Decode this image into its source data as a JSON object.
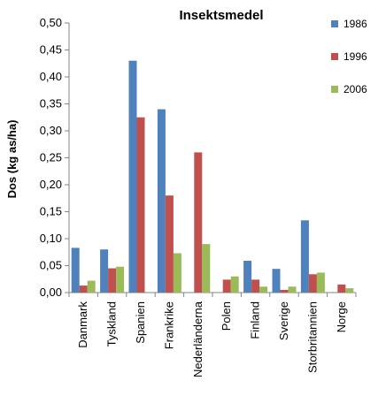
{
  "chart_data": {
    "type": "bar",
    "title": "Insektsmedel",
    "ylabel": "Dos (kg as/ha)",
    "xlabel": "",
    "ylim": [
      0,
      0.5
    ],
    "yticks": [
      "0,00",
      "0,05",
      "0,10",
      "0,15",
      "0,20",
      "0,25",
      "0,30",
      "0,35",
      "0,40",
      "0,45",
      "0,50"
    ],
    "categories": [
      "Danmark",
      "Tyskland",
      "Spanien",
      "Frankrike",
      "Nederländerna",
      "Polen",
      "Finland",
      "Sverige",
      "Storbritannien",
      "Norge"
    ],
    "series": [
      {
        "name": "1986",
        "color": "#4F81BD",
        "values": [
          0.083,
          0.08,
          0.43,
          0.34,
          null,
          null,
          0.059,
          0.044,
          0.134,
          null
        ]
      },
      {
        "name": "1996",
        "color": "#C0504D",
        "values": [
          0.013,
          0.045,
          0.325,
          0.18,
          0.26,
          0.024,
          0.024,
          0.005,
          0.034,
          0.015
        ]
      },
      {
        "name": "2006",
        "color": "#9BBB59",
        "values": [
          0.022,
          0.048,
          null,
          0.073,
          0.09,
          0.03,
          0.011,
          0.011,
          0.037,
          0.008
        ]
      }
    ],
    "grid": false,
    "legend_position": "right"
  }
}
